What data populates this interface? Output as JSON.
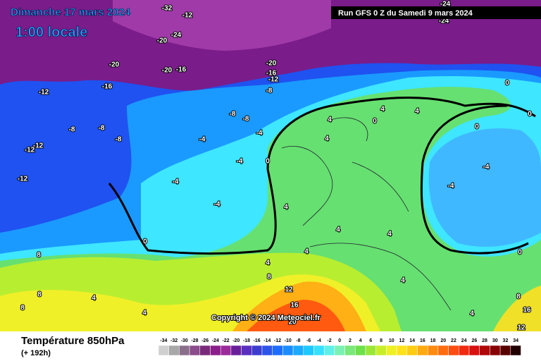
{
  "title": "Dimanche 17 mars 2024",
  "subtitle": "1:00 locale",
  "run": "Run GFS 0 Z du Samedi 9 mars 2024",
  "copyright": "Copyright © 2024 Meteociel.fr",
  "footer": {
    "title": "Température 850hPa",
    "subtitle": "(+ 192h)"
  },
  "contour_labels": [
    "-20",
    "-24",
    "-20",
    "-20",
    "-16",
    "-20",
    "-16",
    "-12",
    "-12",
    "-16",
    "-8",
    "-8",
    "-8",
    "-8",
    "-8",
    "-8",
    "-4",
    "-4",
    "-12",
    "-12",
    "-12",
    "-4",
    "-4",
    "-4",
    "0",
    "0",
    "4",
    "4",
    "4",
    "4",
    "4",
    "0",
    "0",
    "0",
    "-4",
    "-4",
    "0",
    "4",
    "4",
    "4",
    "4",
    "8",
    "8",
    "8",
    "8",
    "4",
    "4",
    "12",
    "16",
    "20",
    "4",
    "4",
    "8",
    "12",
    "16",
    "-24",
    "-24",
    "-32",
    "-12",
    "0"
  ],
  "legend": {
    "ticks": [
      -34,
      -32,
      -30,
      -28,
      -26,
      -24,
      -22,
      -20,
      -18,
      -16,
      -14,
      -12,
      -10,
      -8,
      -6,
      -4,
      -2,
      0,
      2,
      4,
      6,
      8,
      10,
      12,
      14,
      16,
      18,
      20,
      22,
      24,
      26,
      28,
      30,
      32,
      34
    ],
    "colors": [
      "#d0d0d0",
      "#a8a8a8",
      "#8a6f8a",
      "#8a4c8a",
      "#7a2a7a",
      "#8a1e8a",
      "#9b2b9b",
      "#6a1f9a",
      "#5a2fbf",
      "#3c3ccf",
      "#2c54e8",
      "#1e6cff",
      "#1a8cff",
      "#1aaaff",
      "#1ec8ff",
      "#38e0ff",
      "#5ef0e8",
      "#7cf0b4",
      "#7ae87a",
      "#6ee04a",
      "#9ae636",
      "#c8ee2a",
      "#eef024",
      "#ffe21c",
      "#ffcc14",
      "#ffaa10",
      "#ff8c10",
      "#ff6c10",
      "#ff4c10",
      "#f02a10",
      "#d81010",
      "#b00808",
      "#880404",
      "#580000",
      "#200000"
    ]
  }
}
